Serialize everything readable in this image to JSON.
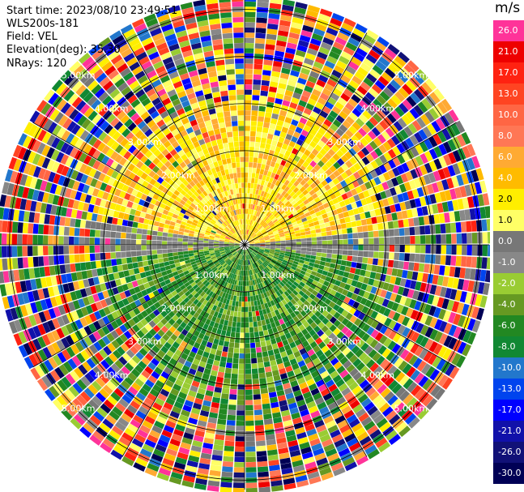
{
  "header": {
    "start_time": "Start time: 2023/08/10 23:49:51",
    "instrument": "WLS200s-181",
    "field": "Field: VEL",
    "elevation": "Elevation(deg): 35.30",
    "nrays": "NRays: 120"
  },
  "chart_data": {
    "type": "heatmap",
    "subtype": "polar-ppi",
    "units": "m/s",
    "rays": 120,
    "range_ring_labels": [
      "1.00km",
      "2.00km",
      "3.00km",
      "4.00km",
      "5.00km"
    ],
    "range_rings_km": [
      1,
      2,
      3,
      4,
      5
    ],
    "max_range_km": 5.2,
    "colorbar": {
      "label": "m/s",
      "range": [
        -30,
        30
      ],
      "ticks": [
        "26.0",
        "21.0",
        "17.0",
        "13.0",
        "10.0",
        "8.0",
        "6.0",
        "4.0",
        "2.0",
        "1.0",
        "0.0",
        "-1.0",
        "-2.0",
        "-4.0",
        "-6.0",
        "-8.0",
        "-10.0",
        "-13.0",
        "-17.0",
        "-21.0",
        "-26.0",
        "-30.0"
      ],
      "colors": [
        "#ff3399",
        "#ee0000",
        "#ff2211",
        "#ff4422",
        "#ff6644",
        "#ff7755",
        "#ffaa33",
        "#ffbb00",
        "#ffee00",
        "#ffff66",
        "#777777",
        "#888888",
        "#99cc33",
        "#669922",
        "#228822",
        "#118833",
        "#2277cc",
        "#0044ee",
        "#0000ff",
        "#1111aa",
        "#111177",
        "#000055"
      ]
    },
    "pattern": {
      "near_field_north": "positive 2 to 6 m/s (yellow/orange)",
      "near_field_south": "negative -1 to -6 m/s (greens)",
      "east_west_axis": "about 0 m/s (gray)",
      "far_field": "noisy, all colors"
    }
  }
}
